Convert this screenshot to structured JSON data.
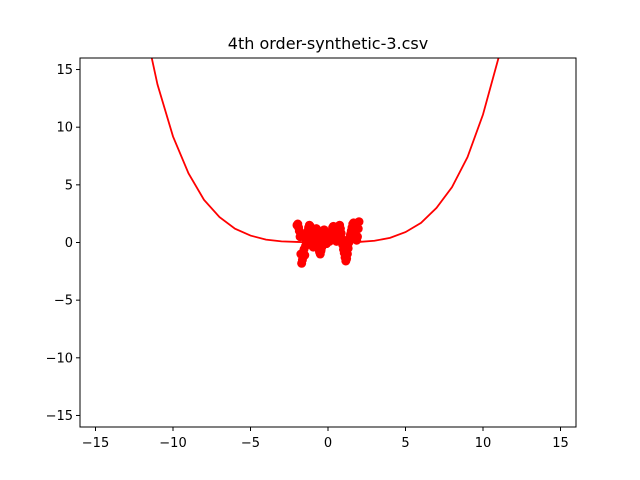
{
  "chart_data": {
    "type": "line",
    "title": "4th order-synthetic-3.csv",
    "xlabel": "",
    "ylabel": "",
    "xlim": [
      -16,
      16
    ],
    "ylim": [
      -16,
      16
    ],
    "grid": false,
    "x_ticks": [
      -15,
      -10,
      -5,
      0,
      5,
      10,
      15
    ],
    "y_ticks": [
      -15,
      -10,
      -5,
      0,
      5,
      10,
      15
    ],
    "x_tick_labels": [
      "−15",
      "−10",
      "−5",
      "0",
      "5",
      "10",
      "15"
    ],
    "y_tick_labels": [
      "−15",
      "−10",
      "−5",
      "0",
      "5",
      "10",
      "15"
    ],
    "color": "#ff0000",
    "series": [
      {
        "kind": "line",
        "x": [
          -12,
          -11,
          -10,
          -9,
          -8,
          -7,
          -6,
          -5,
          -4,
          -3,
          -2,
          -1,
          0,
          1,
          2,
          3,
          4,
          5,
          6,
          7,
          8,
          9,
          10,
          11
        ],
        "y": [
          19.9,
          13.7,
          9.2,
          6.0,
          3.7,
          2.2,
          1.2,
          0.6,
          0.25,
          0.1,
          0.05,
          0.01,
          0.0,
          0.01,
          0.05,
          0.15,
          0.4,
          0.9,
          1.7,
          3.0,
          4.8,
          7.4,
          11.1,
          16.0
        ]
      },
      {
        "kind": "scatter",
        "x": [
          -2.0,
          -1.95,
          -1.9,
          -1.85,
          -1.8,
          -1.75,
          -1.7,
          -1.65,
          -1.6,
          -1.55,
          -1.5,
          -1.45,
          -1.4,
          -1.35,
          -1.3,
          -1.25,
          -1.2,
          -1.15,
          -1.1,
          -1.05,
          -1.0,
          -0.95,
          -0.9,
          -0.85,
          -0.8,
          -0.75,
          -0.7,
          -0.65,
          -0.6,
          -0.55,
          -0.5,
          -0.45,
          -0.4,
          -0.35,
          -0.3,
          -0.25,
          -0.2,
          -0.15,
          -0.1,
          -0.05,
          0.0,
          0.05,
          0.1,
          0.15,
          0.2,
          0.25,
          0.3,
          0.35,
          0.4,
          0.45,
          0.5,
          0.55,
          0.6,
          0.65,
          0.7,
          0.75,
          0.8,
          0.85,
          0.9,
          0.95,
          1.0,
          1.05,
          1.1,
          1.15,
          1.2,
          1.25,
          1.3,
          1.35,
          1.4,
          1.45,
          1.5,
          1.55,
          1.6,
          1.65,
          1.7,
          1.75,
          1.8,
          1.85,
          1.9,
          1.95,
          2.0
        ],
        "y": [
          1.5,
          1.6,
          1.3,
          1.0,
          0.5,
          -1.0,
          -1.8,
          -1.5,
          -0.9,
          -0.6,
          -1.1,
          -0.3,
          0.2,
          0.7,
          1.0,
          1.3,
          1.5,
          1.4,
          0.9,
          0.3,
          -0.2,
          -0.4,
          0.1,
          0.6,
          1.1,
          1.2,
          0.7,
          0.2,
          -0.3,
          -0.8,
          -1.0,
          -0.7,
          -0.4,
          0.3,
          0.9,
          1.1,
          0.8,
          0.3,
          -0.1,
          0.2,
          0.5,
          0.4,
          0.1,
          0.3,
          0.6,
          1.0,
          1.3,
          1.4,
          1.1,
          0.6,
          0.2,
          0.1,
          0.5,
          1.0,
          1.4,
          1.5,
          1.2,
          0.8,
          0.3,
          -0.2,
          -0.6,
          -0.9,
          -1.3,
          -1.6,
          -1.4,
          -1.0,
          -0.5,
          0.0,
          0.4,
          0.7,
          1.0,
          1.3,
          1.6,
          1.7,
          1.5,
          1.1,
          0.6,
          0.2,
          0.5,
          1.2,
          1.8
        ]
      }
    ]
  }
}
